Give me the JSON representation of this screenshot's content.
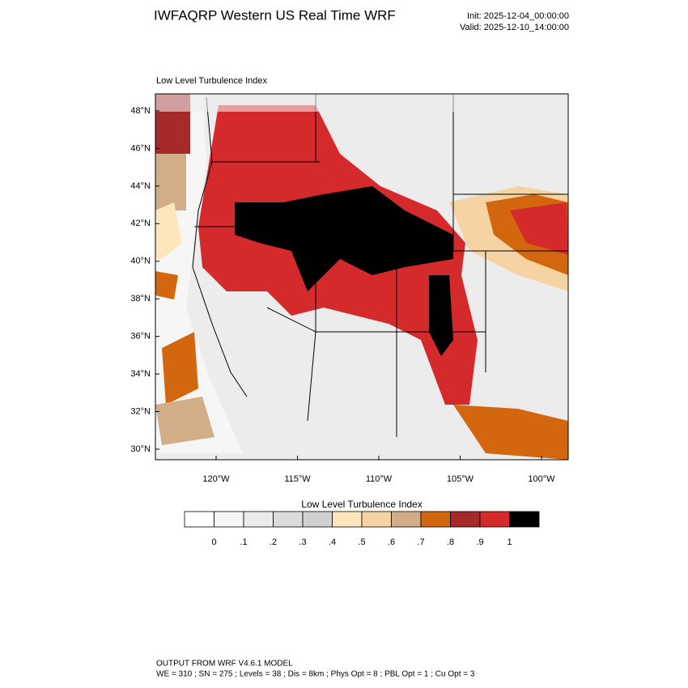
{
  "header": {
    "title": "IWFAQRP Western US Real Time WRF",
    "init": "Init: 2025-12-04_00:00:00",
    "valid": "Valid: 2025-12-10_14:00:00"
  },
  "map": {
    "title": "Low Level Turbulence Index",
    "lat_labels": [
      "48°N",
      "46°N",
      "44°N",
      "42°N",
      "40°N",
      "38°N",
      "36°N",
      "34°N",
      "32°N",
      "30°N"
    ],
    "lon_labels": [
      "120°W",
      "115°W",
      "110°W",
      "105°W",
      "100°W"
    ]
  },
  "colorbar": {
    "title": "Low Level Turbulence Index",
    "labels": [
      "0",
      ".1",
      ".2",
      ".3",
      ".4",
      ".5",
      ".6",
      ".7",
      ".8",
      ".9",
      "1"
    ],
    "colors": [
      "#ffffff",
      "#f5f5f5",
      "#ebebeb",
      "#dcdcdc",
      "#d0d0d0",
      "#fde6bb",
      "#f5d3a2",
      "#d1ae88",
      "#d2670f",
      "#a52a2a",
      "#d42a2c",
      "#000000"
    ]
  },
  "footer": {
    "line1": "OUTPUT FROM WRF V4.6.1 MODEL",
    "line2": "WE = 310 ; SN = 275 ; Levels = 38 ; Dis = 8km ; Phys Opt = 8 ; PBL Opt = 1 ; Cu Opt = 3"
  }
}
